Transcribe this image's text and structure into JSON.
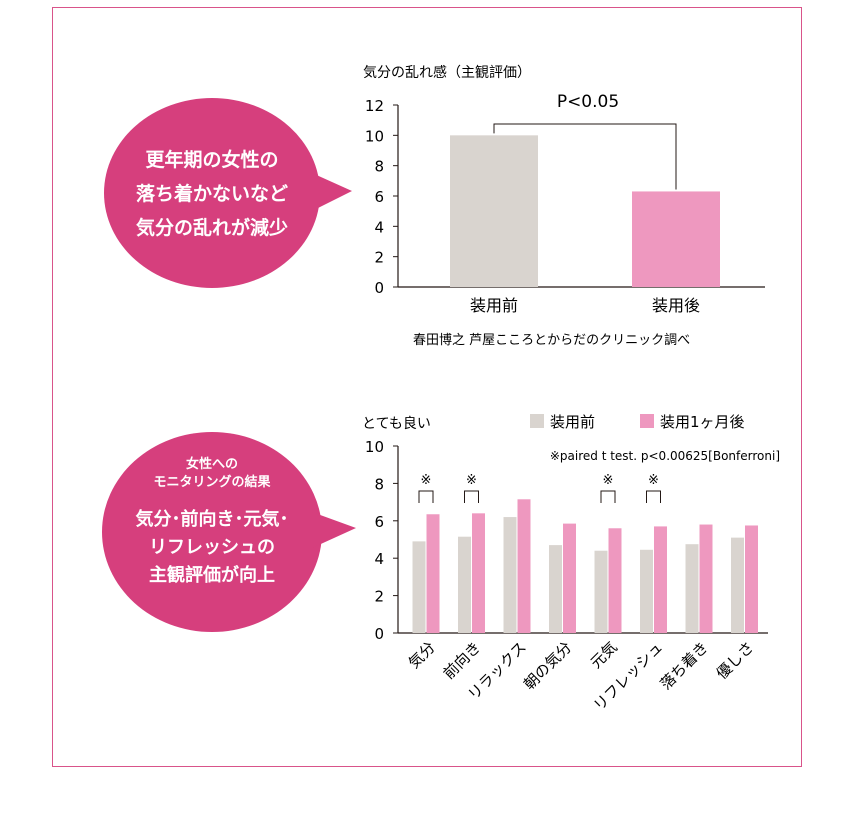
{
  "colors": {
    "frame": "#d9538a",
    "bubble": "#d63f7d",
    "before": "#d9d4cf",
    "after": "#ee98bf",
    "axis": "#231815"
  },
  "bubble1": {
    "text": "更年期の女性の\n落ち着かないなど\n気分の乱れが減少"
  },
  "bubble2": {
    "small_text": "女性への\nモニタリングの結果",
    "big_text": "気分･前向き･元気･\nリフレッシュの\n主観評価が向上"
  },
  "chart_data": [
    {
      "type": "bar",
      "title": "気分の乱れ感（主観評価）",
      "categories": [
        "装用前",
        "装用後"
      ],
      "values": [
        10.0,
        6.3
      ],
      "ylim": [
        0,
        12
      ],
      "yticks": [
        0,
        2,
        4,
        6,
        8,
        10,
        12
      ],
      "significance": "P<0.05",
      "source": "春田博之 芦屋こころとからだのクリニック調べ",
      "grid": false
    },
    {
      "type": "bar",
      "ylabel": "とても良い",
      "categories": [
        "気分",
        "前向き",
        "リラックス",
        "朝の気分",
        "元気",
        "リフレッシュ",
        "落ち着き",
        "優しさ"
      ],
      "series": [
        {
          "name": "装用前",
          "values": [
            4.9,
            5.15,
            6.2,
            4.7,
            4.4,
            4.45,
            4.75,
            5.1
          ]
        },
        {
          "name": "装用1ヶ月後",
          "values": [
            6.35,
            6.4,
            7.15,
            5.85,
            5.6,
            5.7,
            5.8,
            5.75
          ]
        }
      ],
      "ylim": [
        0,
        10
      ],
      "yticks": [
        0,
        2,
        4,
        6,
        8,
        10
      ],
      "significant": [
        true,
        true,
        false,
        false,
        true,
        true,
        false,
        false
      ],
      "significance_mark": "※",
      "note": "※paired t test. p<0.00625[Bonferroni]",
      "legend": "top-right",
      "grid": false
    }
  ]
}
